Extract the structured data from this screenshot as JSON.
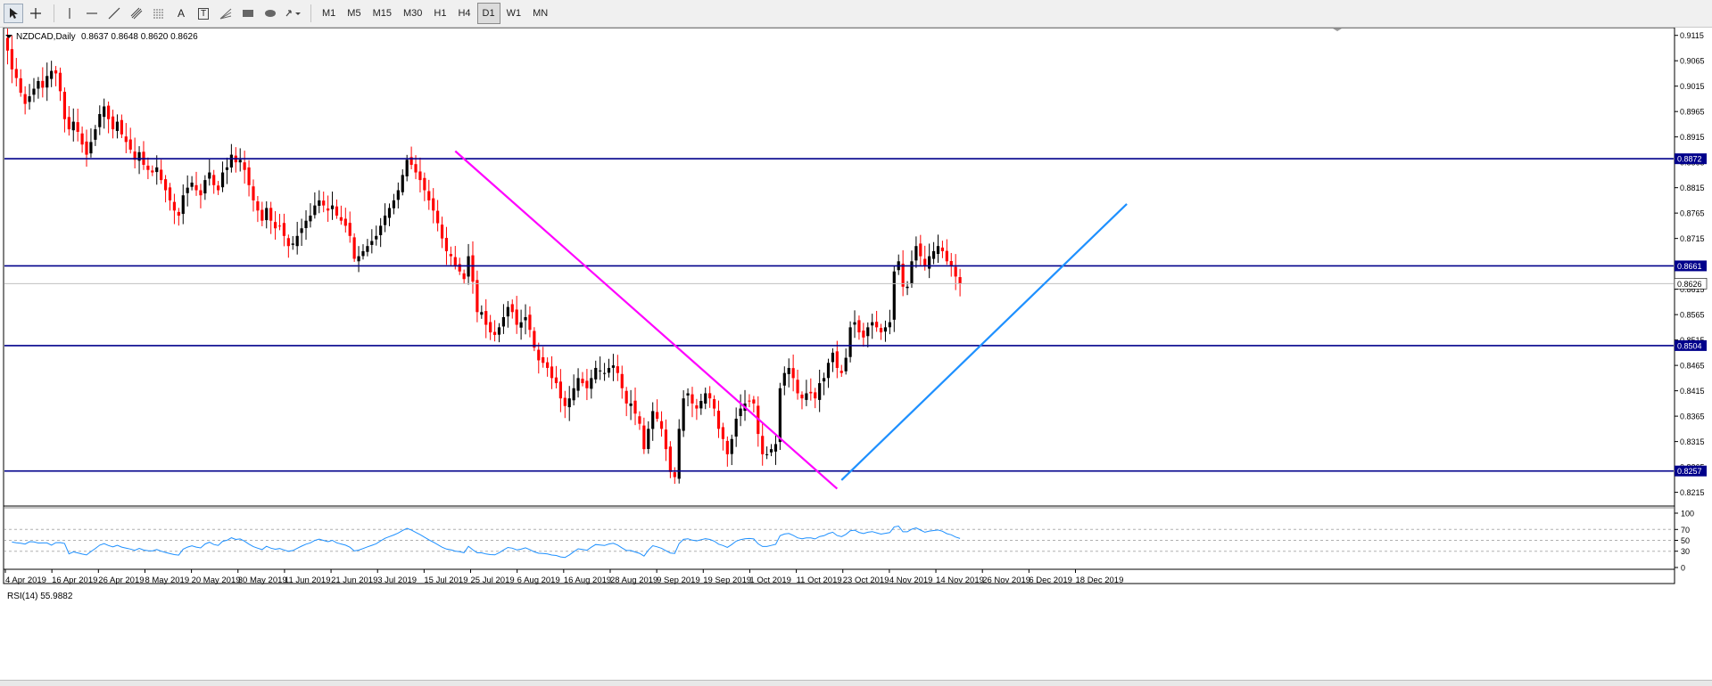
{
  "toolbar": {
    "tools": [
      {
        "name": "cursor-tool",
        "icon": "arrow-cursor-icon",
        "label": ""
      },
      {
        "name": "crosshair-tool",
        "icon": "crosshair-icon",
        "label": ""
      },
      {
        "name": "vertical-line-tool",
        "icon": "vertical-line-icon",
        "label": ""
      },
      {
        "name": "horizontal-line-tool",
        "icon": "horizontal-line-icon",
        "label": ""
      },
      {
        "name": "trendline-tool",
        "icon": "trendline-icon",
        "label": ""
      },
      {
        "name": "channel-tool",
        "icon": "channel-icon",
        "label": ""
      },
      {
        "name": "fibonacci-tool",
        "icon": "fibonacci-icon",
        "label": ""
      },
      {
        "name": "text-tool",
        "icon": "text-icon",
        "label": "A"
      },
      {
        "name": "text-label-tool",
        "icon": "text-label-icon",
        "label": "T"
      },
      {
        "name": "fibo-fan-tool",
        "icon": "fibo-fan-icon",
        "label": ""
      },
      {
        "name": "rectangle-tool",
        "icon": "rectangle-icon",
        "label": ""
      },
      {
        "name": "ellipse-tool",
        "icon": "ellipse-icon",
        "label": ""
      },
      {
        "name": "arrows-tool",
        "icon": "arrows-icon",
        "label": ""
      }
    ],
    "timeframes": [
      "M1",
      "M5",
      "M15",
      "M30",
      "H1",
      "H4",
      "D1",
      "W1",
      "MN"
    ],
    "active_timeframe": "D1"
  },
  "chart_header": {
    "symbol_label": "NZDCAD,Daily",
    "ohlc": "0.8637 0.8648 0.8620 0.8626"
  },
  "rsi_header": {
    "label": "RSI(14) 55.9882"
  },
  "colors": {
    "bull": "#000000",
    "bear": "#ff0000",
    "sr_line": "#00008b",
    "down_trendline": "#ff00ff",
    "up_trendline": "#1e90ff",
    "rsi_line": "#1e90ff",
    "current_price_line": "#c0c0c0"
  },
  "chart_data": {
    "type": "candlestick",
    "title": "NZDCAD,Daily",
    "symbol": "NZDCAD",
    "timeframe": "Daily",
    "ohlc_last": {
      "open": 0.8637,
      "high": 0.8648,
      "low": 0.862,
      "close": 0.8626
    },
    "ylim": [
      0.8195,
      0.9125
    ],
    "y_ticks": [
      "0.9115",
      "0.9065",
      "0.9015",
      "0.8965",
      "0.8915",
      "0.8865",
      "0.8815",
      "0.8765",
      "0.8715",
      "0.8665",
      "0.8615",
      "0.8565",
      "0.8515",
      "0.8465",
      "0.8415",
      "0.8365",
      "0.8315",
      "0.8265",
      "0.8215"
    ],
    "x_tick_labels": [
      "4 Apr 2019",
      "16 Apr 2019",
      "26 Apr 2019",
      "8 May 2019",
      "20 May 2019",
      "30 May 2019",
      "11 Jun 2019",
      "21 Jun 2019",
      "3 Jul 2019",
      "15 Jul 2019",
      "25 Jul 2019",
      "6 Aug 2019",
      "16 Aug 2019",
      "28 Aug 2019",
      "9 Sep 2019",
      "19 Sep 2019",
      "1 Oct 2019",
      "11 Oct 2019",
      "23 Oct 2019",
      "4 Nov 2019",
      "14 Nov 2019",
      "26 Nov 2019",
      "6 Dec 2019",
      "18 Dec 2019"
    ],
    "close": [
      0.9085,
      0.9048,
      0.9031,
      0.9002,
      0.898,
      0.8995,
      0.901,
      0.9025,
      0.9012,
      0.9035,
      0.9045,
      0.904,
      0.9005,
      0.895,
      0.893,
      0.8945,
      0.8925,
      0.89,
      0.888,
      0.8905,
      0.893,
      0.896,
      0.8975,
      0.895,
      0.893,
      0.8945,
      0.892,
      0.8905,
      0.889,
      0.887,
      0.8885,
      0.886,
      0.885,
      0.8845,
      0.8855,
      0.883,
      0.881,
      0.879,
      0.877,
      0.876,
      0.88,
      0.8815,
      0.8825,
      0.881,
      0.88,
      0.883,
      0.8845,
      0.882,
      0.881,
      0.8845,
      0.8855,
      0.888,
      0.8865,
      0.887,
      0.885,
      0.882,
      0.879,
      0.877,
      0.875,
      0.8775,
      0.875,
      0.8735,
      0.874,
      0.872,
      0.87,
      0.8705,
      0.872,
      0.8735,
      0.875,
      0.876,
      0.878,
      0.879,
      0.878,
      0.877,
      0.878,
      0.876,
      0.875,
      0.874,
      0.872,
      0.8675,
      0.868,
      0.869,
      0.87,
      0.871,
      0.872,
      0.874,
      0.876,
      0.8775,
      0.879,
      0.881,
      0.884,
      0.887,
      0.886,
      0.8845,
      0.883,
      0.881,
      0.879,
      0.877,
      0.8745,
      0.8715,
      0.869,
      0.868,
      0.866,
      0.865,
      0.8635,
      0.868,
      0.863,
      0.857,
      0.857,
      0.8545,
      0.853,
      0.8525,
      0.854,
      0.856,
      0.858,
      0.857,
      0.8545,
      0.855,
      0.856,
      0.8535,
      0.85,
      0.8475,
      0.847,
      0.846,
      0.844,
      0.843,
      0.84,
      0.8385,
      0.84,
      0.842,
      0.844,
      0.843,
      0.842,
      0.844,
      0.846,
      0.8455,
      0.845,
      0.846,
      0.8465,
      0.845,
      0.842,
      0.839,
      0.839,
      0.837,
      0.835,
      0.83,
      0.834,
      0.8375,
      0.836,
      0.834,
      0.83,
      0.8255,
      0.8245,
      0.834,
      0.84,
      0.841,
      0.839,
      0.838,
      0.8395,
      0.841,
      0.84,
      0.838,
      0.834,
      0.832,
      0.829,
      0.832,
      0.836,
      0.838,
      0.839,
      0.8395,
      0.839,
      0.833,
      0.829,
      0.829,
      0.83,
      0.831,
      0.842,
      0.845,
      0.846,
      0.844,
      0.841,
      0.84,
      0.841,
      0.841,
      0.84,
      0.843,
      0.844,
      0.847,
      0.849,
      0.846,
      0.845,
      0.848,
      0.854,
      0.855,
      0.853,
      0.852,
      0.854,
      0.855,
      0.854,
      0.853,
      0.854,
      0.855,
      0.865,
      0.867,
      0.862,
      0.862,
      0.867,
      0.87,
      0.868,
      0.866,
      0.868,
      0.869,
      0.87,
      0.869,
      0.867,
      0.866,
      0.864,
      0.8626
    ],
    "support_resistance_levels": [
      0.8872,
      0.8661,
      0.8504,
      0.8257
    ],
    "current_price": 0.8626,
    "trendlines": [
      {
        "name": "downtrend",
        "color": "#ff00ff",
        "from": {
          "x_index": 102,
          "price": 0.8887
        },
        "to": {
          "x_index": 189,
          "price": 0.8222
        }
      },
      {
        "name": "uptrend",
        "color": "#1e90ff",
        "from": {
          "x_index": 190,
          "price": 0.8239
        },
        "to": {
          "x_index": 255,
          "price": 0.8783
        }
      }
    ],
    "rsi": {
      "label": "RSI(14) 55.9882",
      "period": 14,
      "last": 55.9882,
      "ylim": [
        0,
        100
      ],
      "y_ticks": [
        "100",
        "70",
        "50",
        "30",
        "0"
      ],
      "levels": [
        70,
        50,
        30
      ]
    }
  }
}
